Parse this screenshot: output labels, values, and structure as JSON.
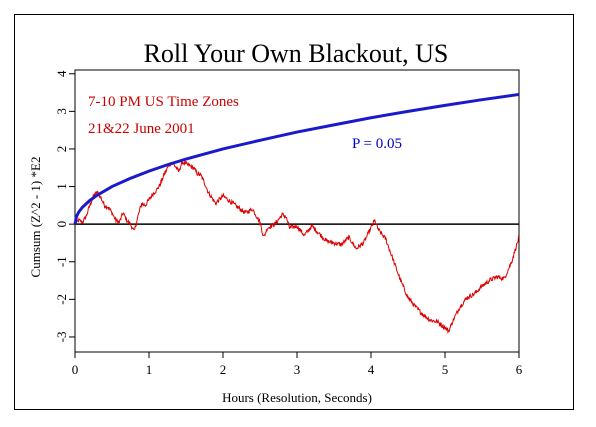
{
  "chart_data": {
    "type": "line",
    "title": "Roll Your Own Blackout, US",
    "xlabel": "Hours (Resolution, Seconds)",
    "ylabel": "Cumsum (Z^2 - 1) *E2",
    "xlim": [
      0,
      6
    ],
    "ylim": [
      -3.4,
      4.1
    ],
    "x_ticks": [
      "0",
      "1",
      "2",
      "3",
      "4",
      "5",
      "6"
    ],
    "y_ticks": [
      "-3",
      "-2",
      "-1",
      "0",
      "1",
      "2",
      "3",
      "4"
    ],
    "annotations": {
      "line1": "7-10 PM US Time Zones",
      "line2": "21&22 June 2001",
      "p_label": "P = 0.05"
    },
    "colors": {
      "data": "#dd0000",
      "envelope": "#1a1acc",
      "zero": "#000000",
      "annot_red": "#cc0000",
      "annot_blue": "#0000cc"
    },
    "series": [
      {
        "role": "cumulative-deviation",
        "x": [
          0,
          0.05,
          0.1,
          0.15,
          0.2,
          0.25,
          0.3,
          0.35,
          0.4,
          0.45,
          0.5,
          0.55,
          0.6,
          0.65,
          0.7,
          0.75,
          0.8,
          0.85,
          0.9,
          0.95,
          1.0,
          1.05,
          1.1,
          1.15,
          1.2,
          1.25,
          1.3,
          1.35,
          1.4,
          1.45,
          1.5,
          1.55,
          1.6,
          1.65,
          1.7,
          1.75,
          1.8,
          1.9,
          2.0,
          2.1,
          2.2,
          2.3,
          2.4,
          2.5,
          2.55,
          2.6,
          2.7,
          2.8,
          2.85,
          2.9,
          3.0,
          3.1,
          3.2,
          3.3,
          3.4,
          3.5,
          3.6,
          3.7,
          3.8,
          3.9,
          4.0,
          4.05,
          4.1,
          4.2,
          4.3,
          4.4,
          4.5,
          4.6,
          4.7,
          4.8,
          4.9,
          5.0,
          5.05,
          5.1,
          5.2,
          5.3,
          5.4,
          5.5,
          5.6,
          5.7,
          5.8,
          5.9,
          6.0
        ],
        "y": [
          0.0,
          0.1,
          0.05,
          0.2,
          0.5,
          0.75,
          0.85,
          0.7,
          0.5,
          0.45,
          0.3,
          0.1,
          0.05,
          0.3,
          0.1,
          0.0,
          -0.2,
          0.2,
          0.55,
          0.5,
          0.65,
          0.8,
          0.9,
          1.05,
          1.3,
          1.5,
          1.65,
          1.55,
          1.4,
          1.65,
          1.6,
          1.55,
          1.5,
          1.35,
          1.3,
          1.1,
          0.85,
          0.55,
          0.75,
          0.6,
          0.45,
          0.3,
          0.4,
          0.05,
          -0.35,
          -0.1,
          0.0,
          0.25,
          0.2,
          -0.1,
          -0.05,
          -0.3,
          -0.05,
          -0.25,
          -0.45,
          -0.5,
          -0.55,
          -0.35,
          -0.65,
          -0.5,
          -0.1,
          0.1,
          -0.15,
          -0.4,
          -0.95,
          -1.5,
          -1.95,
          -2.2,
          -2.4,
          -2.55,
          -2.6,
          -2.75,
          -2.85,
          -2.6,
          -2.2,
          -1.95,
          -1.85,
          -1.65,
          -1.5,
          -1.4,
          -1.45,
          -1.0,
          -0.35
        ]
      },
      {
        "role": "probability-envelope",
        "name": "P = 0.05",
        "x": [
          0,
          0.02,
          0.05,
          0.1,
          0.2,
          0.3,
          0.5,
          0.75,
          1.0,
          1.25,
          1.5,
          2.0,
          2.5,
          3.0,
          3.5,
          4.0,
          4.5,
          5.0,
          5.5,
          6.0
        ],
        "y": [
          0.0,
          0.2,
          0.32,
          0.45,
          0.63,
          0.77,
          1.0,
          1.22,
          1.41,
          1.58,
          1.73,
          2.0,
          2.23,
          2.45,
          2.64,
          2.83,
          3.0,
          3.16,
          3.31,
          3.45
        ]
      }
    ]
  }
}
